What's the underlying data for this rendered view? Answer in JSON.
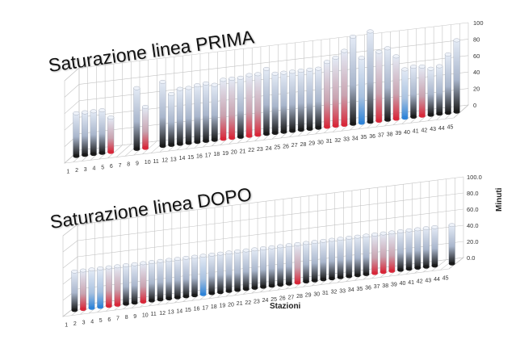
{
  "colors": {
    "grid": "#c4c4c4",
    "bar_neutral_light": "#e4ebf6",
    "bar_neutral_dark": "#1a1a1a",
    "bar_red": "#d8283a",
    "bar_blue": "#2f84d8"
  },
  "chart_data": [
    {
      "type": "bar",
      "title": "Saturazione linea PRIMA",
      "xlabel": "",
      "ylabel": "",
      "categories": [
        "1",
        "2",
        "3",
        "4",
        "5",
        "6",
        "7",
        "8",
        "9",
        "10",
        "11",
        "12",
        "13",
        "14",
        "15",
        "16",
        "17",
        "18",
        "19",
        "20",
        "21",
        "22",
        "23",
        "24",
        "25",
        "26",
        "27",
        "28",
        "29",
        "30",
        "31",
        "32",
        "33",
        "34",
        "35",
        "36",
        "37",
        "38",
        "39",
        "40",
        "41",
        "42",
        "43",
        "44",
        "45"
      ],
      "values": [
        52,
        52,
        52,
        52,
        42,
        0,
        0,
        74,
        50,
        0,
        78,
        62,
        67,
        67,
        69,
        70,
        67,
        72,
        72,
        72,
        74,
        74,
        79,
        72,
        72,
        72,
        72,
        72,
        72,
        79,
        83,
        90,
        106,
        79,
        110,
        84,
        87,
        76,
        59,
        61,
        60,
        56,
        58,
        71,
        87
      ],
      "base_colors": [
        "neutral",
        "neutral",
        "neutral",
        "neutral",
        "red",
        "none",
        "none",
        "neutral",
        "red",
        "none",
        "neutral",
        "neutral",
        "neutral",
        "neutral",
        "neutral",
        "neutral",
        "neutral",
        "red",
        "red",
        "neutral",
        "red",
        "red",
        "neutral",
        "neutral",
        "neutral",
        "neutral",
        "neutral",
        "neutral",
        "neutral",
        "red",
        "red",
        "red",
        "neutral",
        "blue",
        "neutral",
        "red",
        "neutral",
        "red",
        "blue",
        "neutral",
        "red",
        "neutral",
        "neutral",
        "neutral",
        "neutral"
      ],
      "yticks": [
        "0",
        "20",
        "40",
        "60",
        "80",
        "100"
      ],
      "ylim": [
        0,
        100
      ],
      "grid": true
    },
    {
      "type": "bar",
      "title": "Saturazione linea DOPO",
      "xlabel": "Stazioni",
      "ylabel": "Minuti",
      "categories": [
        "1",
        "2",
        "3",
        "4",
        "5",
        "6",
        "7",
        "8",
        "9",
        "10",
        "11",
        "12",
        "13",
        "14",
        "15",
        "16",
        "17",
        "18",
        "19",
        "20",
        "21",
        "22",
        "23",
        "24",
        "25",
        "26",
        "27",
        "28",
        "29",
        "30",
        "31",
        "32",
        "33",
        "34",
        "35",
        "36",
        "37",
        "38",
        "39",
        "40",
        "41",
        "42",
        "43",
        "44",
        "45"
      ],
      "values": [
        48,
        48,
        48,
        48,
        48,
        48,
        48,
        48,
        48,
        48,
        48,
        48,
        48,
        48,
        48,
        48,
        48,
        48,
        48,
        48,
        48,
        48,
        48,
        48,
        48,
        48,
        48,
        48,
        48,
        48,
        48,
        48,
        48,
        48,
        48,
        48,
        48,
        48,
        48,
        48,
        48,
        48,
        48,
        0,
        48
      ],
      "base_colors": [
        "neutral",
        "red",
        "blue",
        "blue",
        "red",
        "red",
        "neutral",
        "neutral",
        "red",
        "neutral",
        "neutral",
        "neutral",
        "neutral",
        "neutral",
        "neutral",
        "blue",
        "neutral",
        "neutral",
        "neutral",
        "neutral",
        "neutral",
        "neutral",
        "neutral",
        "neutral",
        "neutral",
        "neutral",
        "red",
        "neutral",
        "neutral",
        "neutral",
        "neutral",
        "neutral",
        "neutral",
        "neutral",
        "neutral",
        "red",
        "red",
        "red",
        "neutral",
        "neutral",
        "neutral",
        "neutral",
        "neutral",
        "none",
        "neutral"
      ],
      "yticks": [
        "0.0",
        "20.0",
        "40.0",
        "60.0",
        "80.0",
        "100.0"
      ],
      "ylim": [
        0,
        100
      ],
      "grid": true
    }
  ]
}
